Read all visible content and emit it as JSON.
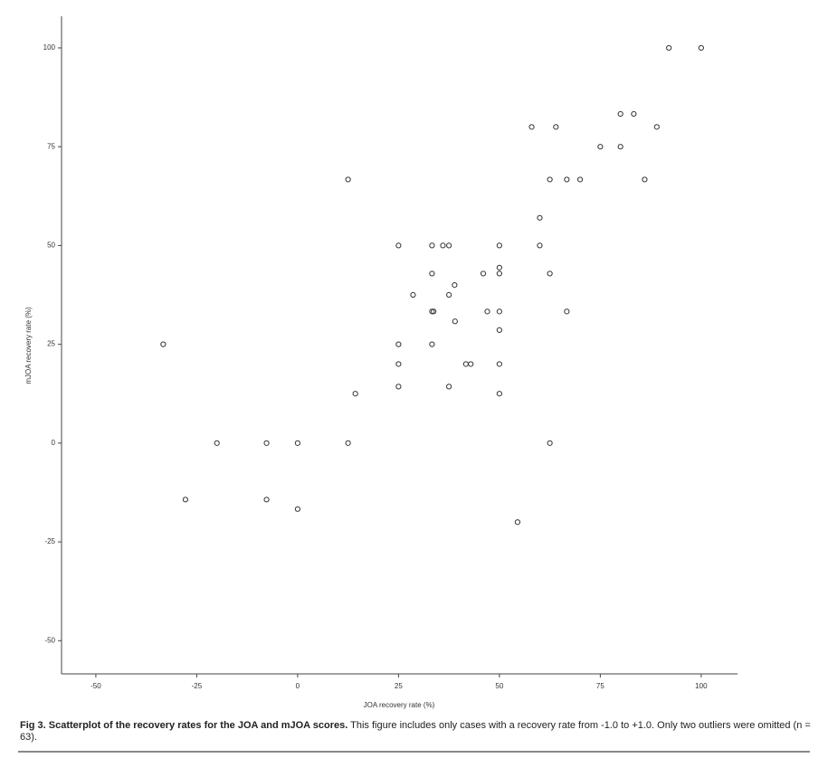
{
  "chart_data": {
    "type": "scatter",
    "x_label": "JOA recovery rate (%)",
    "y_label": "mJOA recovery rate (%)",
    "xlim": [
      -58.5,
      109
    ],
    "ylim": [
      -58.4,
      108
    ],
    "xticks": [
      -50,
      -25,
      0,
      25,
      50,
      75,
      100
    ],
    "yticks": [
      -50,
      -25,
      0,
      25,
      50,
      75,
      100
    ],
    "series": [
      {
        "color": "#333333",
        "x": [
          92,
          100,
          58,
          64,
          80,
          83.3,
          89,
          75,
          80,
          12.5,
          62.5,
          66.7,
          70,
          86,
          60,
          25,
          33.3,
          36,
          37.5,
          50,
          60,
          50,
          33.3,
          46,
          50,
          62.5,
          38.9,
          28.6,
          37.5,
          33.3,
          33.7,
          47,
          50,
          66.7,
          39,
          50,
          -33.3,
          25,
          33.3,
          25,
          41.7,
          42.9,
          50,
          25,
          37.5,
          14.3,
          50,
          -20,
          -7.7,
          0,
          12.5,
          62.5,
          -27.8,
          -7.7,
          0,
          54.5
        ],
        "values": [
          100,
          100,
          80,
          80,
          83.3,
          83.3,
          80,
          75,
          75,
          66.7,
          66.7,
          66.7,
          66.7,
          66.7,
          57,
          50,
          50,
          50,
          50,
          50,
          50,
          44.4,
          42.9,
          42.9,
          42.9,
          42.9,
          40,
          37.5,
          37.5,
          33.3,
          33.3,
          33.3,
          33.3,
          33.3,
          30.8,
          28.6,
          25,
          25,
          25,
          20,
          20,
          20,
          20,
          14.3,
          14.3,
          12.5,
          12.5,
          0,
          0,
          0,
          0,
          0,
          -14.3,
          -14.3,
          -16.7,
          -20
        ]
      }
    ]
  },
  "caption": {
    "title": "Fig 3. Scatterplot of the recovery rates for the JOA and mJOA scores.",
    "text": " This figure includes only cases with a recovery rate from -1.0 to +1.0. Only two outliers were omitted (n = 63)."
  }
}
